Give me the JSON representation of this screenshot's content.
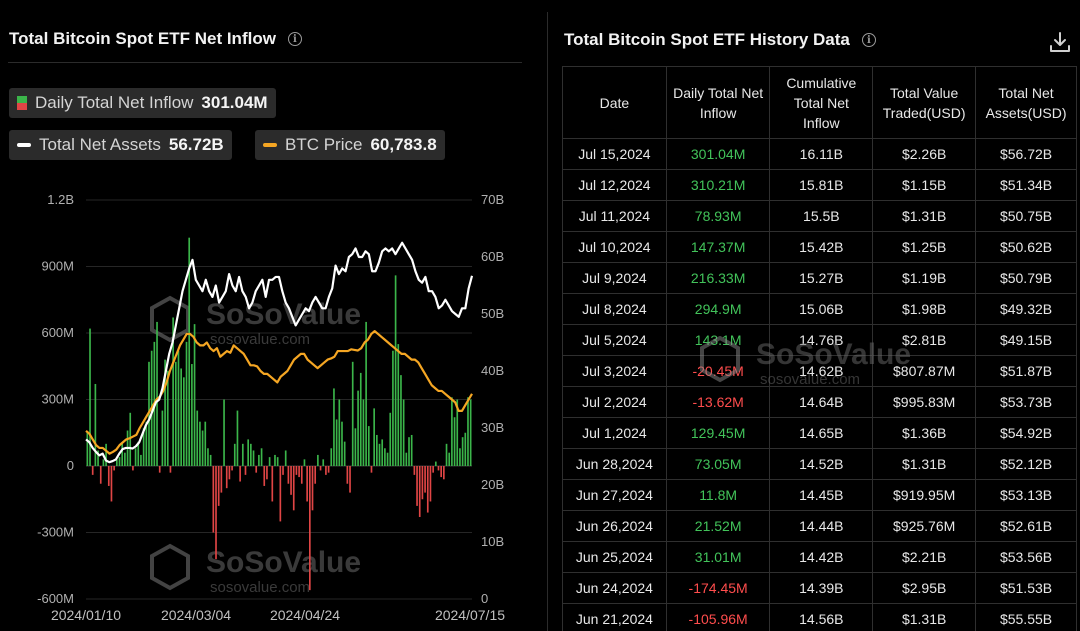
{
  "left": {
    "title": "Total Bitcoin Spot ETF Net Inflow",
    "legend": [
      {
        "label": "Daily Total Net Inflow",
        "value": "301.04M",
        "type": "bar"
      },
      {
        "label": "Total Net Assets",
        "value": "56.72B",
        "type": "line",
        "color": "#ffffff"
      },
      {
        "label": "BTC Price",
        "value": "60,783.8",
        "type": "line",
        "color": "#f5a623"
      }
    ]
  },
  "watermark": {
    "brand": "SoSoValue",
    "site": "sosovalue.com"
  },
  "colors": {
    "inflow_positive": "#3bb54a",
    "inflow_negative": "#e04545",
    "net_assets": "#ffffff",
    "btc_price": "#f5a623",
    "background": "#000000"
  },
  "chart_data": {
    "type": "bar",
    "title": "Total Bitcoin Spot ETF Net Inflow",
    "x_ticks": [
      "2024/01/10",
      "2024/03/04",
      "2024/04/24",
      "2024/07/15"
    ],
    "y_left": {
      "ticks": [
        "1.2B",
        "900M",
        "600M",
        "300M",
        "0",
        "-300M",
        "-600M"
      ],
      "range": [
        -600,
        1200
      ],
      "unit": "M"
    },
    "y_right": {
      "ticks": [
        "70B",
        "60B",
        "50B",
        "40B",
        "30B",
        "20B",
        "10B",
        "0"
      ],
      "range": [
        0,
        70
      ],
      "unit": "B"
    },
    "grid": true,
    "series": [
      {
        "name": "Daily Total Net Inflow",
        "type": "bar",
        "axis": "left",
        "unit": "M",
        "values": [
          150,
          620,
          -40,
          370,
          70,
          -80,
          30,
          100,
          -90,
          -160,
          -20,
          30,
          40,
          100,
          60,
          160,
          240,
          -20,
          80,
          110,
          50,
          170,
          200,
          470,
          520,
          560,
          650,
          -30,
          250,
          480,
          430,
          -30,
          670,
          470,
          520,
          440,
          400,
          560,
          1030,
          460,
          640,
          250,
          200,
          160,
          200,
          80,
          50,
          -300,
          -420,
          -180,
          -120,
          300,
          -100,
          -60,
          -20,
          100,
          250,
          -70,
          100,
          -40,
          120,
          100,
          70,
          -30,
          50,
          80,
          -90,
          -60,
          40,
          -160,
          50,
          40,
          -250,
          -40,
          70,
          -80,
          -130,
          -200,
          -40,
          -50,
          -80,
          30,
          -160,
          -560,
          -200,
          -80,
          50,
          -20,
          30,
          -40,
          -30,
          80,
          350,
          210,
          300,
          200,
          110,
          -80,
          -120,
          470,
          170,
          340,
          420,
          300,
          650,
          180,
          -30,
          260,
          140,
          100,
          120,
          80,
          60,
          240,
          520,
          860,
          550,
          410,
          300,
          60,
          130,
          140,
          -40,
          -180,
          -230,
          -150,
          -120,
          -210,
          -160,
          -30,
          20,
          -20,
          -50,
          -60,
          100,
          60,
          310,
          220,
          300,
          80,
          130,
          150,
          310,
          300
        ]
      },
      {
        "name": "Total Net Assets",
        "type": "line",
        "axis": "right",
        "unit": "B",
        "values": [
          28,
          27.5,
          26.5,
          25.8,
          25.2,
          25.5,
          24.3,
          24.0,
          24.2,
          24.5,
          25.5,
          26.3,
          26.5,
          26.5,
          26.4,
          26.8,
          27.5,
          29,
          30.5,
          31.5,
          33,
          34.5,
          35,
          37,
          40,
          43,
          45,
          48,
          51,
          54,
          56,
          58,
          59.5,
          56,
          55,
          54,
          56,
          54,
          53,
          55,
          52,
          53,
          54,
          57,
          55,
          54,
          56.5,
          54,
          53,
          51,
          52,
          54,
          55,
          56,
          53,
          56,
          56,
          56.5,
          56.5,
          54,
          52,
          51,
          49.5,
          48,
          49,
          50,
          51,
          50.5,
          52,
          53,
          52,
          51,
          51,
          53,
          54.5,
          58.5,
          57,
          58,
          57.5,
          60,
          60.5,
          61.5,
          60,
          60,
          61,
          60.5,
          57.5,
          57.5,
          59,
          61,
          61.5,
          61,
          61.5,
          60.5,
          61.5,
          62.5,
          61.5,
          60.5,
          59.5,
          57.5,
          56,
          55.5,
          56.5,
          54,
          54,
          53,
          51,
          51.5,
          52.5,
          51.5,
          50.5,
          50,
          49.5,
          51,
          51,
          54.5,
          56.7
        ]
      },
      {
        "name": "BTC Price",
        "type": "line",
        "axis": "right",
        "unit": "B",
        "values": [
          29.5,
          29,
          28,
          27,
          26.5,
          26.5,
          26,
          25.5,
          25.8,
          26.2,
          27,
          27.5,
          28,
          28.2,
          28.5,
          28.8,
          30,
          31,
          32,
          33,
          34,
          35,
          35.5,
          36.5,
          38,
          40,
          41.5,
          43,
          44.5,
          45.5,
          46.5,
          46.5,
          46,
          45,
          44.5,
          44.5,
          45,
          44,
          43.5,
          44,
          42.5,
          43,
          43.5,
          43.2,
          44.5,
          44,
          43.5,
          43,
          42,
          41,
          41,
          40.8,
          40,
          39.5,
          39.5,
          39,
          38.5,
          38,
          39,
          39.5,
          40,
          41,
          42,
          42.5,
          43,
          43,
          42,
          41.5,
          41,
          40.5,
          41,
          41.5,
          42,
          42.2,
          42.5,
          43.5,
          43.5,
          43.5,
          43.5,
          43.8,
          43.7,
          43.6,
          44,
          45,
          45.5,
          46.5,
          47,
          46.5,
          46,
          45.5,
          45,
          44.5,
          44,
          43.5,
          43,
          43,
          42.5,
          42,
          42,
          41.5,
          40.5,
          39.5,
          38.5,
          37.5,
          37,
          36.5,
          36.5,
          36,
          35.5,
          35,
          34.5,
          33,
          33,
          34,
          35,
          36
        ]
      }
    ]
  },
  "right": {
    "title": "Total Bitcoin Spot ETF History Data",
    "headers": [
      "Date",
      "Daily Total Net Inflow",
      "Cumulative Total Net Inflow",
      "Total Value Traded(USD)",
      "Total Net Assets(USD)"
    ],
    "rows": [
      [
        "Jul 15,2024",
        "301.04M",
        "16.11B",
        "$2.26B",
        "$56.72B"
      ],
      [
        "Jul 12,2024",
        "310.21M",
        "15.81B",
        "$1.15B",
        "$51.34B"
      ],
      [
        "Jul 11,2024",
        "78.93M",
        "15.5B",
        "$1.31B",
        "$50.75B"
      ],
      [
        "Jul 10,2024",
        "147.37M",
        "15.42B",
        "$1.25B",
        "$50.62B"
      ],
      [
        "Jul 9,2024",
        "216.33M",
        "15.27B",
        "$1.19B",
        "$50.79B"
      ],
      [
        "Jul 8,2024",
        "294.9M",
        "15.06B",
        "$1.98B",
        "$49.32B"
      ],
      [
        "Jul 5,2024",
        "143.1M",
        "14.76B",
        "$2.81B",
        "$49.15B"
      ],
      [
        "Jul 3,2024",
        "-20.45M",
        "14.62B",
        "$807.87M",
        "$51.87B"
      ],
      [
        "Jul 2,2024",
        "-13.62M",
        "14.64B",
        "$995.83M",
        "$53.73B"
      ],
      [
        "Jul 1,2024",
        "129.45M",
        "14.65B",
        "$1.36B",
        "$54.92B"
      ],
      [
        "Jun 28,2024",
        "73.05M",
        "14.52B",
        "$1.31B",
        "$52.12B"
      ],
      [
        "Jun 27,2024",
        "11.8M",
        "14.45B",
        "$919.95M",
        "$53.13B"
      ],
      [
        "Jun 26,2024",
        "21.52M",
        "14.44B",
        "$925.76M",
        "$52.61B"
      ],
      [
        "Jun 25,2024",
        "31.01M",
        "14.42B",
        "$2.21B",
        "$53.56B"
      ],
      [
        "Jun 24,2024",
        "-174.45M",
        "14.39B",
        "$2.95B",
        "$51.53B"
      ],
      [
        "Jun 21,2024",
        "-105.96M",
        "14.56B",
        "$1.31B",
        "$55.55B"
      ]
    ]
  }
}
